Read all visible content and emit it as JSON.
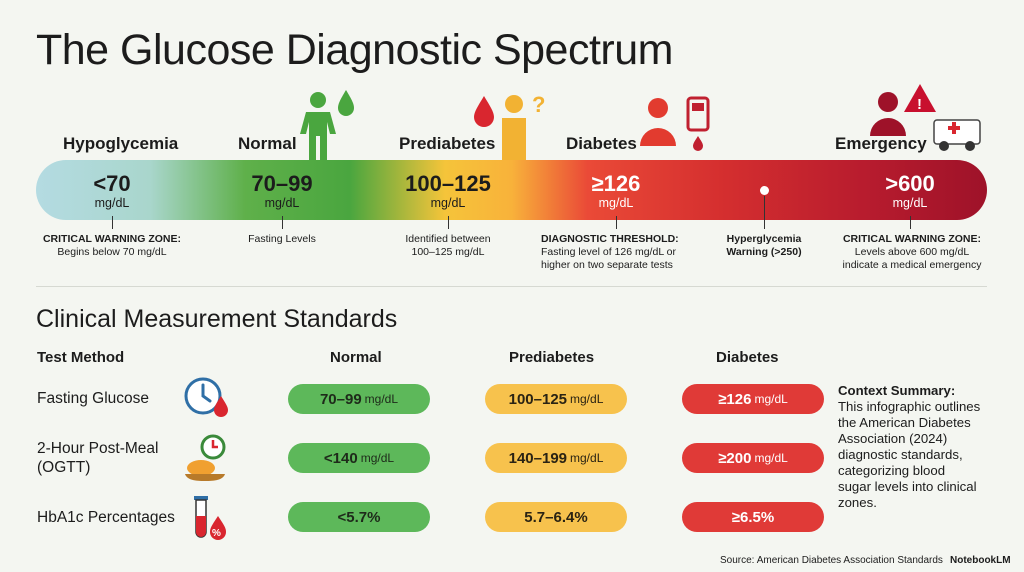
{
  "title": "The Glucose Diagnostic Spectrum",
  "spectrum": {
    "categories": [
      "Hypoglycemia",
      "Normal",
      "Prediabetes",
      "Diabetes",
      "Emergency"
    ],
    "values": [
      {
        "value": "<70",
        "unit": "mg/dL"
      },
      {
        "value": "70–99",
        "unit": "mg/dL"
      },
      {
        "value": "100–125",
        "unit": "mg/dL"
      },
      {
        "value": "≥126",
        "unit": "mg/dL"
      },
      {
        "value": ">600",
        "unit": "mg/dL"
      }
    ],
    "notes": [
      {
        "heading": "CRITICAL WARNING ZONE:",
        "lines": [
          "Begins below 70 mg/dL"
        ]
      },
      {
        "heading": "",
        "lines": [
          "Fasting Levels"
        ]
      },
      {
        "heading": "",
        "lines": [
          "Identified between",
          "100–125 mg/dL"
        ]
      },
      {
        "heading": "DIAGNOSTIC THRESHOLD:",
        "lines": [
          "Fasting level of 126 mg/dL or",
          "higher on two separate tests"
        ]
      },
      {
        "heading": "Hyperglycemia",
        "lines": [
          "Warning (>250)"
        ]
      },
      {
        "heading": "CRITICAL WARNING ZONE:",
        "lines": [
          "Levels above 600 mg/dL",
          "indicate a medical emergency"
        ]
      }
    ]
  },
  "standards": {
    "title": "Clinical Measurement Standards",
    "headers": {
      "method": "Test Method",
      "normal": "Normal",
      "prediabetes": "Prediabetes",
      "diabetes": "Diabetes"
    },
    "rows": [
      {
        "label": [
          "Fasting Glucose"
        ],
        "icon": "clock-blood-drop-icon",
        "normal": "70–99",
        "normal_unit": "mg/dL",
        "prediabetes": "100–125",
        "prediabetes_unit": "mg/dL",
        "diabetes": "≥126",
        "diabetes_unit": "mg/dL"
      },
      {
        "label": [
          "2-Hour Post-Meal",
          "(OGTT)"
        ],
        "icon": "meal-timer-icon",
        "normal": "<140",
        "normal_unit": "mg/dL",
        "prediabetes": "140–199",
        "prediabetes_unit": "mg/dL",
        "diabetes": "≥200",
        "diabetes_unit": "mg/dL"
      },
      {
        "label": [
          "HbA1c Percentages"
        ],
        "icon": "test-tube-percent-icon",
        "normal": "<5.7%",
        "normal_unit": "",
        "prediabetes": "5.7–6.4%",
        "prediabetes_unit": "",
        "diabetes": "≥6.5%",
        "diabetes_unit": ""
      }
    ]
  },
  "context": {
    "heading": "Context Summary:",
    "lines": [
      "This infographic outlines",
      "the American Diabetes",
      "Association (2024)",
      "diagnostic standards,",
      "categorizing blood",
      "sugar levels into clinical",
      "zones."
    ]
  },
  "source": "Source: American Diabetes Association Standards",
  "brand": "NotebookLM",
  "icons": [
    "person-drop-icon",
    "blood-drop-question-icon",
    "person-glucometer-icon",
    "alert-ambulance-icon",
    "clock-blood-drop-icon",
    "meal-timer-icon",
    "test-tube-percent-icon"
  ],
  "colors": {
    "hypo": "#b4dbe2",
    "normal": "#4aa63f",
    "prediabetes": "#f8b23a",
    "diabetes": "#d52f2f",
    "emergency": "#9e1229"
  }
}
